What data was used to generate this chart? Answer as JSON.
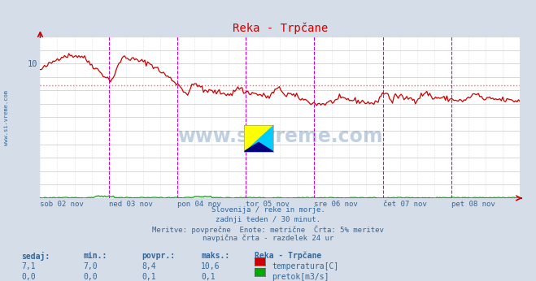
{
  "title": "Reka - Trpčane",
  "bg_color": "#d4dde8",
  "plot_bg_color": "#ffffff",
  "grid_color": "#c8c8c8",
  "temp_color": "#cc0000",
  "flow_color": "#00aa00",
  "avg_line_color": "#ff6666",
  "vline_color": "#cc00cc",
  "xlabel_color": "#336699",
  "y_min": 0,
  "y_max": 12,
  "x_labels": [
    "sob 02 nov",
    "ned 03 nov",
    "pon 04 nov",
    "tor 05 nov",
    "sre 06 nov",
    "čet 07 nov",
    "pet 08 nov"
  ],
  "footer_lines": [
    "Slovenija / reke in morje.",
    "zadnji teden / 30 minut.",
    "Meritve: povprečne  Enote: metrične  Črta: 5% meritev",
    "navpična črta - razdelek 24 ur"
  ],
  "table_headers": [
    "sedaj:",
    "min.:",
    "povpr.:",
    "maks.:",
    "Reka - Trpčane"
  ],
  "table_row1": [
    "7,1",
    "7,0",
    "8,4",
    "10,6",
    "temperatura[C]"
  ],
  "table_row2": [
    "0,0",
    "0,0",
    "0,1",
    "0,1",
    "pretok[m3/s]"
  ],
  "avg_temp": 8.4,
  "n_points": 336,
  "watermark": "www.si-vreme.com"
}
